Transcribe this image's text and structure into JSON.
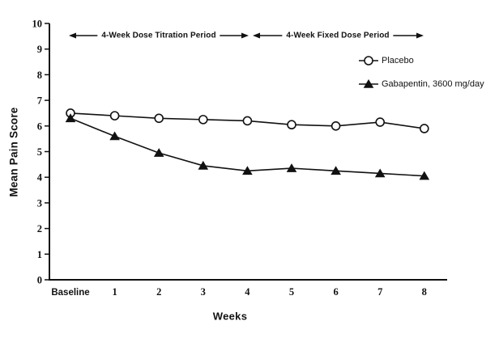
{
  "figure": {
    "background": "#ffffff",
    "ink_color": "#111111",
    "marker_fill_open": "#ffffff"
  },
  "chart_data": {
    "type": "line",
    "title": "",
    "xlabel": "Weeks",
    "ylabel": "Mean Pain Score",
    "x_categories": [
      "Baseline",
      "1",
      "2",
      "3",
      "4",
      "5",
      "6",
      "7",
      "8"
    ],
    "ylim": [
      0,
      10
    ],
    "y_ticks": [
      0,
      1,
      2,
      3,
      4,
      5,
      6,
      7,
      8,
      9,
      10
    ],
    "grid": false,
    "legend_position": "inside-upper-right",
    "series": [
      {
        "name": "Placebo",
        "marker": "open-circle",
        "color": "#111111",
        "values": [
          6.5,
          6.4,
          6.3,
          6.25,
          6.2,
          6.05,
          6.0,
          6.15,
          5.9
        ]
      },
      {
        "name": "Gabapentin, 3600 mg/day",
        "marker": "filled-triangle",
        "color": "#111111",
        "values": [
          6.3,
          5.6,
          4.95,
          4.45,
          4.25,
          4.35,
          4.25,
          4.15,
          4.05
        ]
      }
    ],
    "annotations": [
      {
        "label": "4-Week Dose Titration Period",
        "span_weeks": [
          0,
          4
        ]
      },
      {
        "label": "4-Week Fixed Dose Period",
        "span_weeks": [
          4,
          8
        ]
      }
    ]
  }
}
